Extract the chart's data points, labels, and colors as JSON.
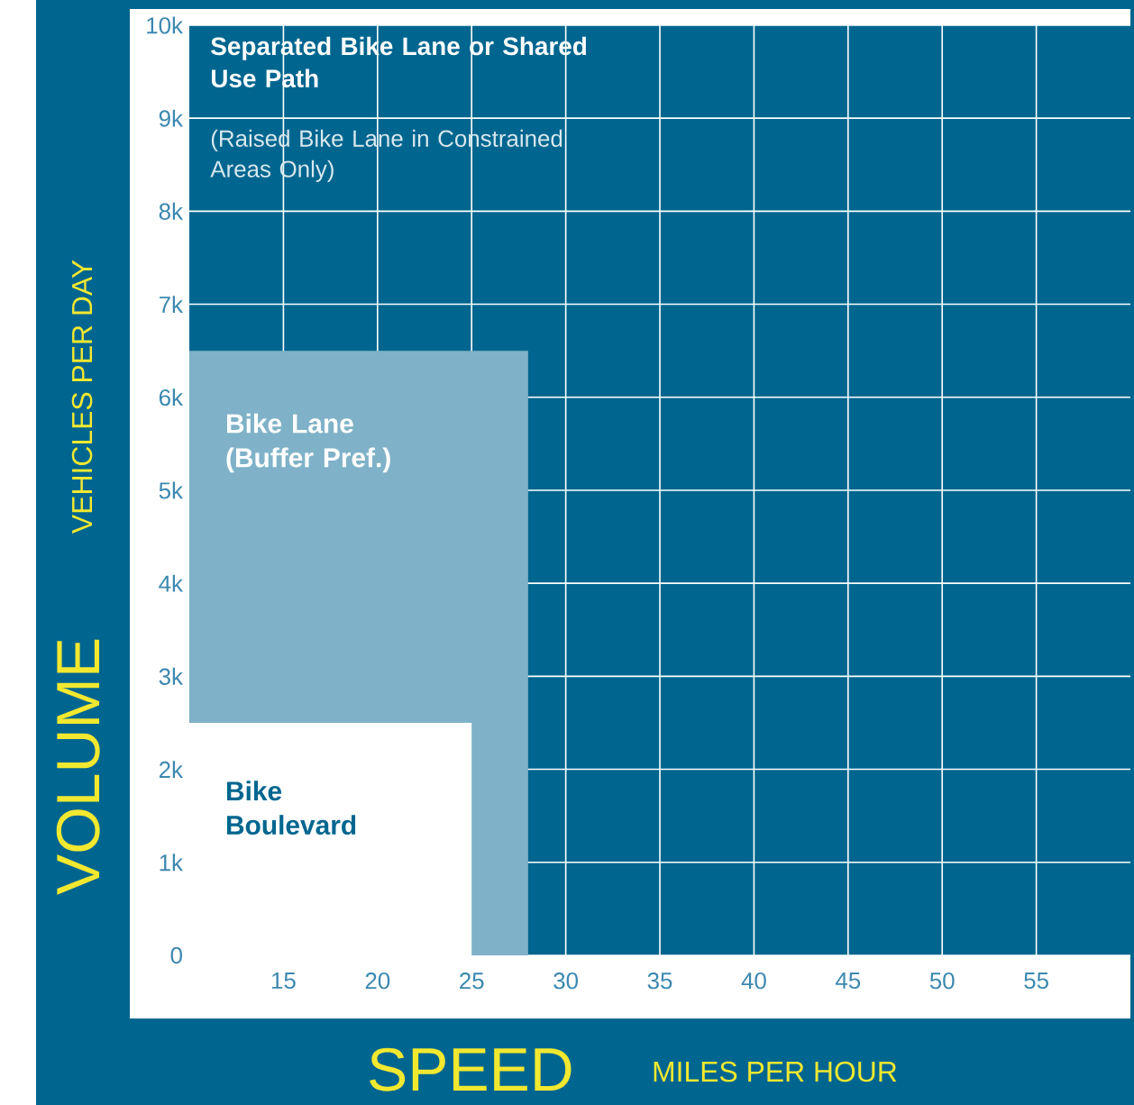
{
  "chart_data": {
    "type": "area",
    "xlabel": "SPEED",
    "ylabel": "VOLUME",
    "xlim": [
      10,
      60
    ],
    "ylim": [
      0,
      10000
    ],
    "xticks": [
      15,
      20,
      25,
      30,
      35,
      40,
      45,
      50,
      55
    ],
    "yticks": [
      0,
      {
        "value": 1000,
        "label": "1k"
      },
      {
        "value": 2000,
        "label": "2k"
      },
      {
        "value": 3000,
        "label": "3k"
      },
      {
        "value": 4000,
        "label": "4k"
      },
      {
        "value": 5000,
        "label": "5k"
      },
      {
        "value": 6000,
        "label": "6k"
      },
      {
        "value": 7000,
        "label": "7k"
      },
      {
        "value": 8000,
        "label": "8k"
      },
      {
        "value": 9000,
        "label": "9k"
      },
      {
        "value": 10000,
        "label": "10k"
      }
    ],
    "grid": true,
    "series": [
      {
        "name": "Bike Lane (Buffer Pref.)",
        "color": "#7fb2c8",
        "x": [
          10,
          28
        ],
        "values": [
          6500,
          6500
        ]
      },
      {
        "name": "Bike Boulevard",
        "color": "#ffffff",
        "x": [
          10,
          25
        ],
        "values": [
          2500,
          2500
        ]
      }
    ],
    "annotations": [
      "**Separated Bike Lane or Shared Use Path**",
      "(Raised Bike Lane in Constrained Areas Only)",
      "MILES PER HOUR",
      "VEHICLES PER DAY"
    ]
  }
}
